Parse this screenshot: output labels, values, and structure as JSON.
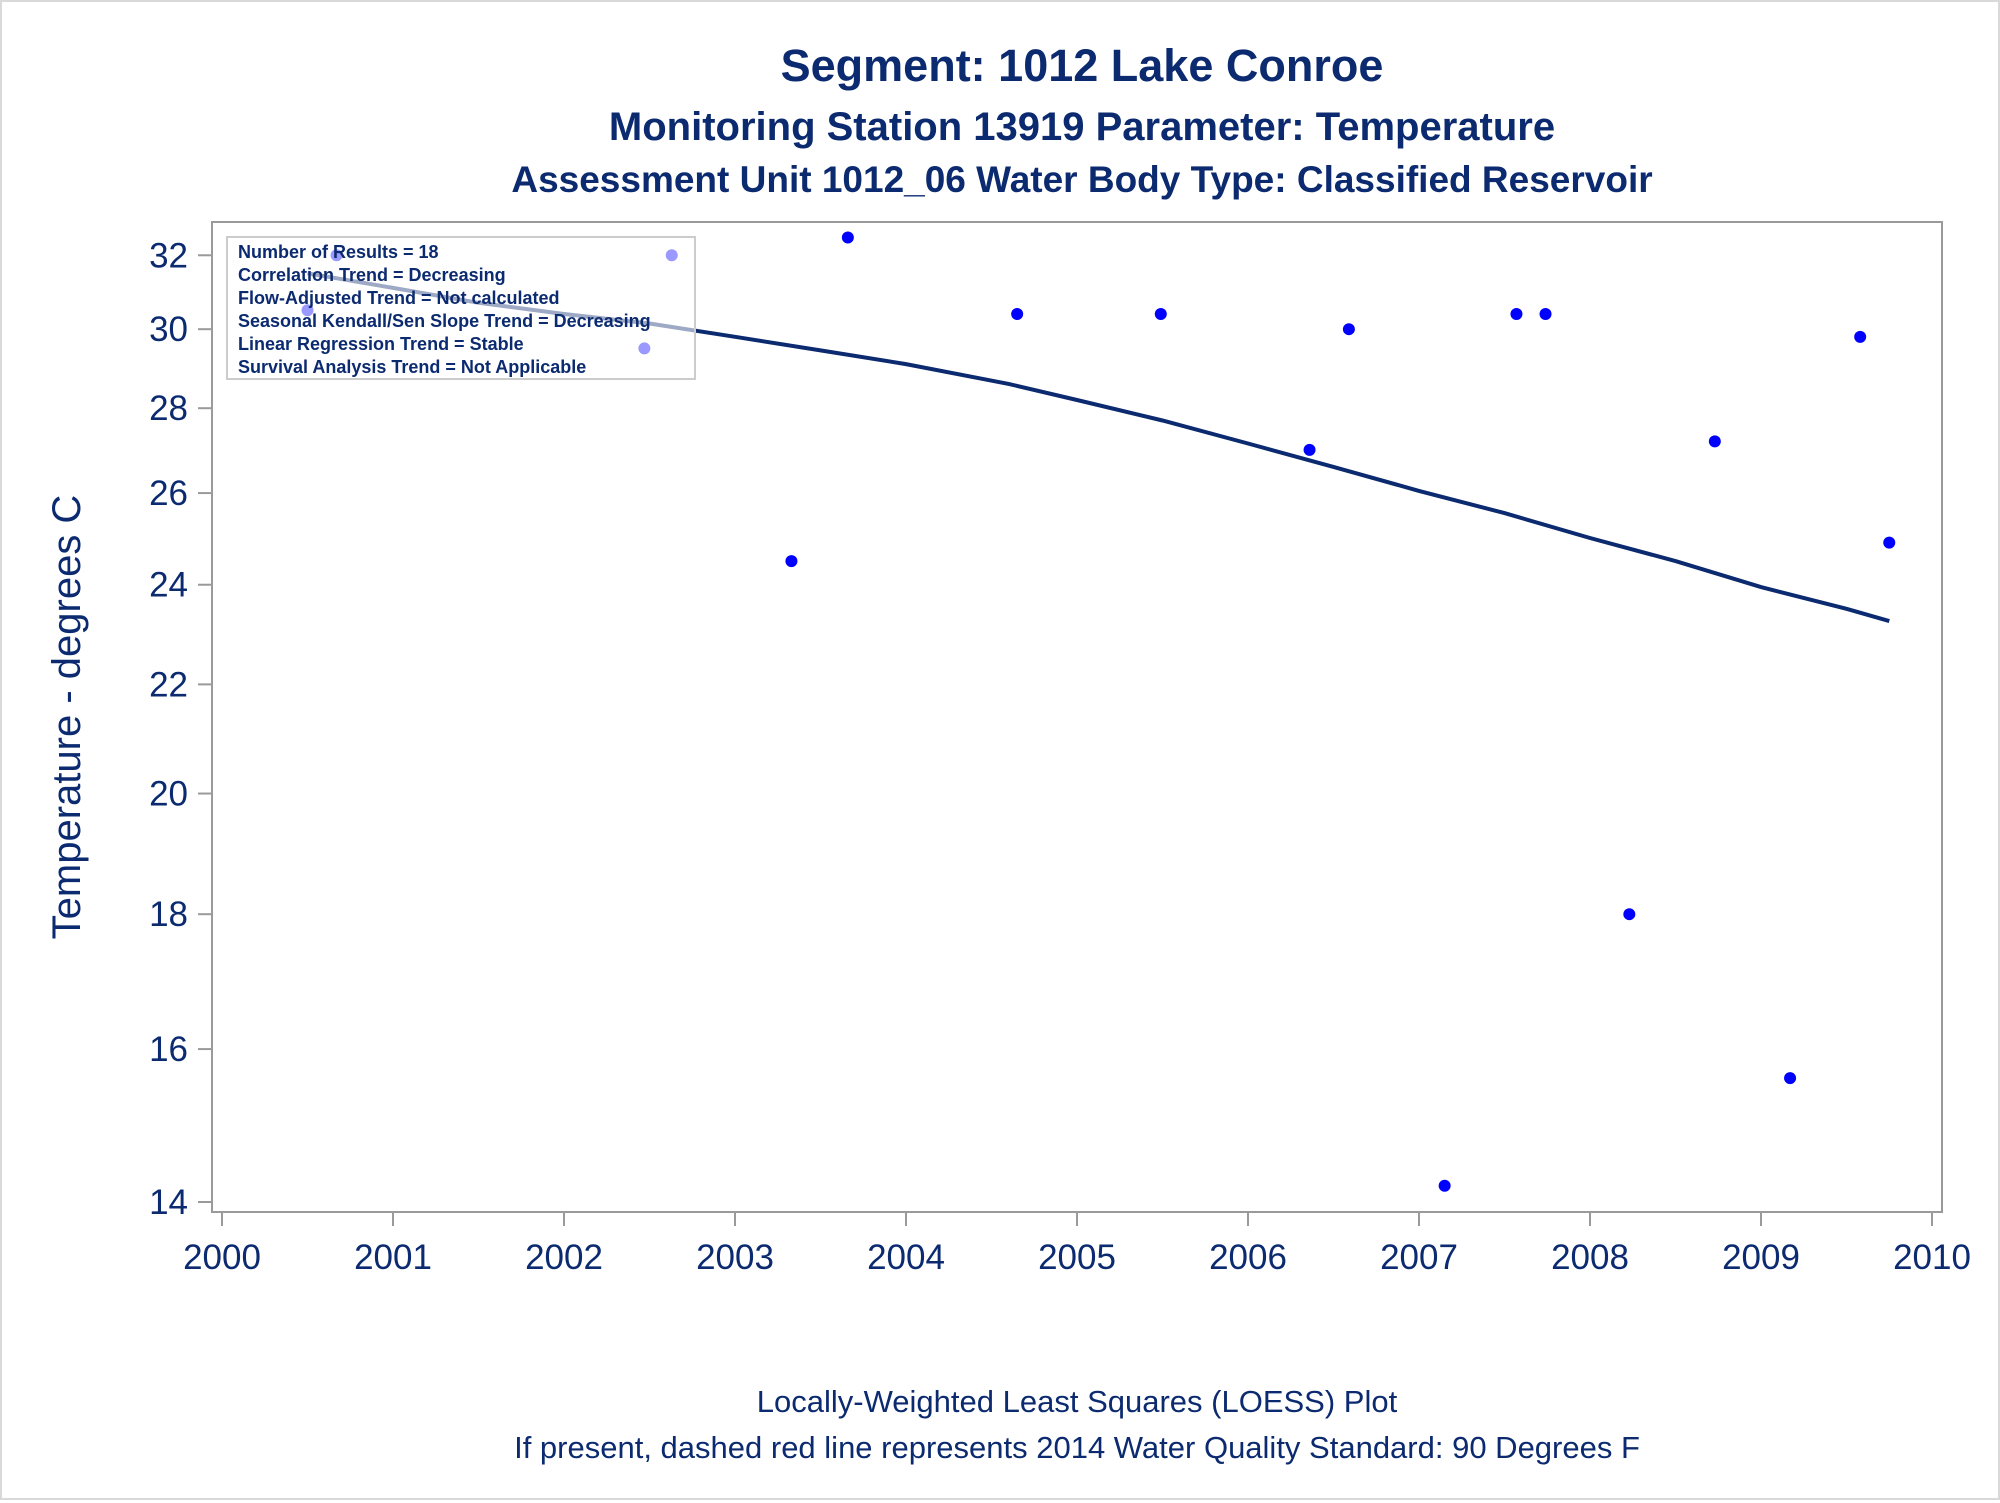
{
  "colors": {
    "text": "#0b2a6f",
    "points": "#0000ff",
    "loess_line": "#0b2a6f",
    "axis": "#9a9a9a"
  },
  "chart_data": {
    "type": "scatter",
    "title": "Segment: 1012  Lake Conroe",
    "subtitle": "Monitoring Station 13919 Parameter: Temperature",
    "subtitle2": "Assessment Unit 1012_06   Water Body Type: Classified Reservoir",
    "xlabel": "",
    "ylabel": "Temperature - degrees C",
    "xlim": [
      2000,
      2010
    ],
    "ylim": [
      14,
      32.8
    ],
    "yscale": "log",
    "x_ticks": [
      "2000",
      "2001",
      "2002",
      "2003",
      "2004",
      "2005",
      "2006",
      "2007",
      "2008",
      "2009",
      "2010"
    ],
    "y_ticks": [
      "14",
      "16",
      "18",
      "20",
      "22",
      "24",
      "26",
      "28",
      "30",
      "32"
    ],
    "points": [
      {
        "x": 2000.5,
        "y": 30.5
      },
      {
        "x": 2000.67,
        "y": 32.0
      },
      {
        "x": 2002.47,
        "y": 29.5
      },
      {
        "x": 2002.63,
        "y": 32.0
      },
      {
        "x": 2003.33,
        "y": 24.5
      },
      {
        "x": 2003.66,
        "y": 32.5
      },
      {
        "x": 2004.65,
        "y": 30.4
      },
      {
        "x": 2005.49,
        "y": 30.4
      },
      {
        "x": 2006.36,
        "y": 27.0
      },
      {
        "x": 2006.59,
        "y": 30.0
      },
      {
        "x": 2007.15,
        "y": 14.2
      },
      {
        "x": 2007.57,
        "y": 30.4
      },
      {
        "x": 2007.74,
        "y": 30.4
      },
      {
        "x": 2008.23,
        "y": 18.0
      },
      {
        "x": 2008.73,
        "y": 27.2
      },
      {
        "x": 2009.17,
        "y": 15.6
      },
      {
        "x": 2009.58,
        "y": 29.8
      },
      {
        "x": 2009.75,
        "y": 24.9
      }
    ],
    "loess_curve": [
      {
        "x": 2000.5,
        "y": 31.5
      },
      {
        "x": 2001.0,
        "y": 31.1
      },
      {
        "x": 2001.5,
        "y": 30.7
      },
      {
        "x": 2002.0,
        "y": 30.4
      },
      {
        "x": 2002.5,
        "y": 30.15
      },
      {
        "x": 2003.0,
        "y": 29.8
      },
      {
        "x": 2003.5,
        "y": 29.45
      },
      {
        "x": 2004.0,
        "y": 29.1
      },
      {
        "x": 2004.6,
        "y": 28.6
      },
      {
        "x": 2005.0,
        "y": 28.2
      },
      {
        "x": 2005.5,
        "y": 27.7
      },
      {
        "x": 2006.0,
        "y": 27.15
      },
      {
        "x": 2006.5,
        "y": 26.6
      },
      {
        "x": 2007.0,
        "y": 26.05
      },
      {
        "x": 2007.5,
        "y": 25.55
      },
      {
        "x": 2008.0,
        "y": 25.0
      },
      {
        "x": 2008.5,
        "y": 24.5
      },
      {
        "x": 2009.0,
        "y": 23.95
      },
      {
        "x": 2009.5,
        "y": 23.5
      },
      {
        "x": 2009.75,
        "y": 23.25
      }
    ],
    "annotations": [
      "Number of Results = 18",
      "Correlation Trend = Decreasing",
      "Flow-Adjusted Trend = Not calculated",
      "Seasonal Kendall/Sen Slope Trend = Decreasing",
      "Linear Regression Trend = Stable",
      "Survival Analysis Trend = Not Applicable"
    ],
    "footnotes": [
      "Locally-Weighted Least Squares (LOESS) Plot",
      "If present, dashed red line represents 2014 Water Quality Standard: 90   Degrees F"
    ]
  }
}
